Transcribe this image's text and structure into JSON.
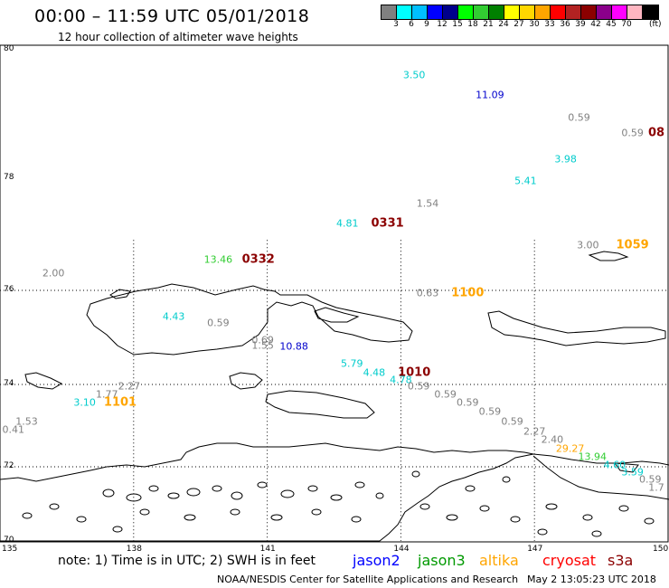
{
  "title": "00:00 – 11:59 UTC 05/01/2018",
  "subtitle": "12 hour collection of altimeter wave heights",
  "legend": {
    "colors": [
      "#808080",
      "#00ffff",
      "#00bfff",
      "#0000ff",
      "#00008b",
      "#00ff00",
      "#32cd32",
      "#008000",
      "#ffff00",
      "#ffd700",
      "#ffa500",
      "#ff0000",
      "#b22222",
      "#8b0000",
      "#8b008b",
      "#ff00ff",
      "#ffb6c1",
      "#000000"
    ],
    "labels": [
      "3",
      "6",
      "9",
      "12",
      "15",
      "18",
      "21",
      "24",
      "27",
      "30",
      "33",
      "36",
      "39",
      "42",
      "45",
      "70"
    ],
    "unit": "(ft)"
  },
  "axes": {
    "lat_labels": [
      "80",
      "78",
      "76",
      "74",
      "72",
      "70"
    ],
    "lon_labels": [
      "135",
      "138",
      "141",
      "144",
      "147",
      "150"
    ]
  },
  "wave_heights": [
    {
      "text": "3.50",
      "color": "#00cccc",
      "lon": 144.3,
      "lat": 79.6
    },
    {
      "text": "11.09",
      "color": "#0000cc",
      "lon": 146.0,
      "lat": 79.3
    },
    {
      "text": "0.59",
      "color": "#808080",
      "lon": 148.0,
      "lat": 78.95
    },
    {
      "text": "0.59",
      "color": "#808080",
      "lon": 149.2,
      "lat": 78.7
    },
    {
      "text": "3.98",
      "color": "#00cccc",
      "lon": 147.7,
      "lat": 78.3
    },
    {
      "text": "5.41",
      "color": "#00cccc",
      "lon": 146.8,
      "lat": 77.95
    },
    {
      "text": "1.54",
      "color": "#808080",
      "lon": 144.6,
      "lat": 77.55
    },
    {
      "text": "4.81",
      "color": "#00cccc",
      "lon": 142.8,
      "lat": 77.2
    },
    {
      "text": "3.00",
      "color": "#808080",
      "lon": 148.2,
      "lat": 76.8
    },
    {
      "text": "13.46",
      "color": "#32cd32",
      "lon": 139.9,
      "lat": 76.55
    },
    {
      "text": "2.00",
      "color": "#808080",
      "lon": 136.2,
      "lat": 76.3
    },
    {
      "text": "0.63",
      "color": "#808080",
      "lon": 144.6,
      "lat": 75.95
    },
    {
      "text": "4.43",
      "color": "#00cccc",
      "lon": 138.9,
      "lat": 75.45
    },
    {
      "text": "0.59",
      "color": "#808080",
      "lon": 139.9,
      "lat": 75.3
    },
    {
      "text": "0.69",
      "color": "#808080",
      "lon": 140.9,
      "lat": 74.95
    },
    {
      "text": "1.55",
      "color": "#808080",
      "lon": 140.9,
      "lat": 74.82
    },
    {
      "text": "10.88",
      "color": "#0000cc",
      "lon": 141.6,
      "lat": 74.8
    },
    {
      "text": "5.79",
      "color": "#00cccc",
      "lon": 142.9,
      "lat": 74.45
    },
    {
      "text": "4.48",
      "color": "#00cccc",
      "lon": 143.4,
      "lat": 74.25
    },
    {
      "text": "4.78",
      "color": "#00cccc",
      "lon": 144.0,
      "lat": 74.1
    },
    {
      "text": "0.59",
      "color": "#808080",
      "lon": 144.4,
      "lat": 73.95
    },
    {
      "text": "2.27",
      "color": "#808080",
      "lon": 137.9,
      "lat": 73.95
    },
    {
      "text": "1.77",
      "color": "#808080",
      "lon": 137.4,
      "lat": 73.75
    },
    {
      "text": "0.59",
      "color": "#808080",
      "lon": 145.0,
      "lat": 73.75
    },
    {
      "text": "0.59",
      "color": "#808080",
      "lon": 145.5,
      "lat": 73.55
    },
    {
      "text": "3.10",
      "color": "#00cccc",
      "lon": 136.9,
      "lat": 73.55
    },
    {
      "text": "0.59",
      "color": "#808080",
      "lon": 146.0,
      "lat": 73.35
    },
    {
      "text": "1.53",
      "color": "#808080",
      "lon": 135.6,
      "lat": 73.1
    },
    {
      "text": "0.59",
      "color": "#808080",
      "lon": 146.5,
      "lat": 73.1
    },
    {
      "text": "0.41",
      "color": "#808080",
      "lon": 135.3,
      "lat": 72.9
    },
    {
      "text": "2.27",
      "color": "#808080",
      "lon": 147.0,
      "lat": 72.85
    },
    {
      "text": "2.40",
      "color": "#808080",
      "lon": 147.4,
      "lat": 72.65
    },
    {
      "text": "29.27",
      "color": "#ffa500",
      "lon": 147.8,
      "lat": 72.45
    },
    {
      "text": "13.94",
      "color": "#32cd32",
      "lon": 148.3,
      "lat": 72.25
    },
    {
      "text": "4.60",
      "color": "#00cccc",
      "lon": 148.8,
      "lat": 72.05
    },
    {
      "text": "3.59",
      "color": "#00cccc",
      "lon": 149.2,
      "lat": 71.85
    },
    {
      "text": "0.59",
      "color": "#808080",
      "lon": 149.6,
      "lat": 71.65
    },
    {
      "text": "1.7",
      "color": "#808080",
      "lon": 150.0,
      "lat": 71.45
    }
  ],
  "time_labels": [
    {
      "text": "0331",
      "color": "#8b0000",
      "lon": 143.7,
      "lat": 77.2
    },
    {
      "text": "0332",
      "color": "#8b0000",
      "lon": 140.8,
      "lat": 76.55
    },
    {
      "text": "1059",
      "color": "#ffa500",
      "lon": 149.2,
      "lat": 76.8
    },
    {
      "text": "1100",
      "color": "#ffa500",
      "lon": 145.5,
      "lat": 75.95
    },
    {
      "text": "1010",
      "color": "#8b0000",
      "lon": 144.3,
      "lat": 74.25
    },
    {
      "text": "1101",
      "color": "#ffa500",
      "lon": 137.7,
      "lat": 73.55
    },
    {
      "text": "08",
      "color": "#8b0000",
      "lon": 150.0,
      "lat": 78.7
    }
  ],
  "footer": {
    "note": "note: 1) Time is in UTC; 2) SWH is in feet",
    "satellites": [
      {
        "name": "jason2",
        "color": "#0000ff"
      },
      {
        "name": "jason3",
        "color": "#009900"
      },
      {
        "name": "altika",
        "color": "#ffa500"
      },
      {
        "name": "cryosat",
        "color": "#ff0000"
      },
      {
        "name": "s3a",
        "color": "#8b0000"
      }
    ],
    "credit": "NOAA/NESDIS Center for Satellite Applications and Research",
    "timestamp": "May  2 13:05:23 UTC 2018"
  }
}
